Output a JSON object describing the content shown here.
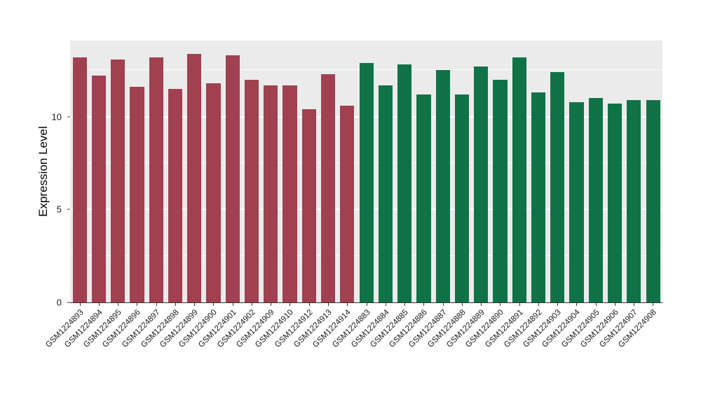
{
  "chart_data": {
    "type": "bar",
    "title": "",
    "xlabel": "",
    "ylabel": "Expression Level",
    "ylim": [
      0,
      14.1
    ],
    "yticks": [
      0,
      5,
      10
    ],
    "yticks_minor": [
      2.5,
      7.5,
      12.5
    ],
    "grid": "on",
    "legend": "none",
    "panel_background": "#EBEBEB",
    "gridline_color": "#FFFFFF",
    "axis_line_color": "#333333",
    "palette": {
      "maroon": "#A04050",
      "green": "#0F7347"
    },
    "bars": [
      {
        "label": "GSM1224893",
        "value": 13.2,
        "group": "maroon"
      },
      {
        "label": "GSM1224894",
        "value": 12.2,
        "group": "maroon"
      },
      {
        "label": "GSM1224895",
        "value": 13.1,
        "group": "maroon"
      },
      {
        "label": "GSM1224896",
        "value": 11.6,
        "group": "maroon"
      },
      {
        "label": "GSM1224897",
        "value": 13.2,
        "group": "maroon"
      },
      {
        "label": "GSM1224898",
        "value": 11.5,
        "group": "maroon"
      },
      {
        "label": "GSM1224899",
        "value": 13.4,
        "group": "maroon"
      },
      {
        "label": "GSM1224900",
        "value": 11.8,
        "group": "maroon"
      },
      {
        "label": "GSM1224901",
        "value": 13.3,
        "group": "maroon"
      },
      {
        "label": "GSM1224902",
        "value": 12.0,
        "group": "maroon"
      },
      {
        "label": "GSM1224909",
        "value": 11.7,
        "group": "maroon"
      },
      {
        "label": "GSM1224910",
        "value": 11.7,
        "group": "maroon"
      },
      {
        "label": "GSM1224912",
        "value": 10.4,
        "group": "maroon"
      },
      {
        "label": "GSM1224913",
        "value": 12.3,
        "group": "maroon"
      },
      {
        "label": "GSM1224914",
        "value": 10.6,
        "group": "maroon"
      },
      {
        "label": "GSM1224883",
        "value": 12.9,
        "group": "green"
      },
      {
        "label": "GSM1224884",
        "value": 11.7,
        "group": "green"
      },
      {
        "label": "GSM1224885",
        "value": 12.8,
        "group": "green"
      },
      {
        "label": "GSM1224886",
        "value": 11.2,
        "group": "green"
      },
      {
        "label": "GSM1224887",
        "value": 12.5,
        "group": "green"
      },
      {
        "label": "GSM1224888",
        "value": 11.2,
        "group": "green"
      },
      {
        "label": "GSM1224889",
        "value": 12.7,
        "group": "green"
      },
      {
        "label": "GSM1224890",
        "value": 12.0,
        "group": "green"
      },
      {
        "label": "GSM1224891",
        "value": 13.2,
        "group": "green"
      },
      {
        "label": "GSM1224892",
        "value": 11.3,
        "group": "green"
      },
      {
        "label": "GSM1224903",
        "value": 12.4,
        "group": "green"
      },
      {
        "label": "GSM1224904",
        "value": 10.8,
        "group": "green"
      },
      {
        "label": "GSM1224905",
        "value": 11.0,
        "group": "green"
      },
      {
        "label": "GSM1224906",
        "value": 10.7,
        "group": "green"
      },
      {
        "label": "GSM1224907",
        "value": 10.9,
        "group": "green"
      },
      {
        "label": "GSM1224908",
        "value": 10.9,
        "group": "green"
      }
    ]
  }
}
